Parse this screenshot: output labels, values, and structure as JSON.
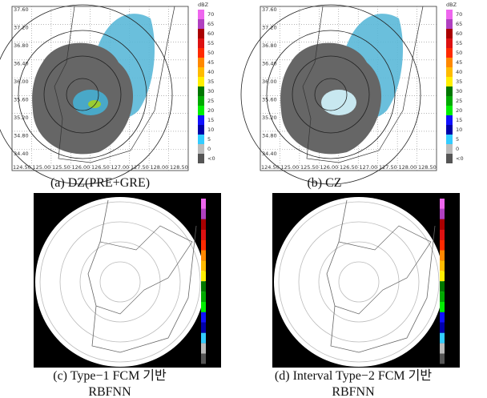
{
  "panels": [
    {
      "caption": "(a) DZ(PRE+GRE)"
    },
    {
      "caption": "(b) CZ"
    },
    {
      "caption": "(c) Type−1 FCM 기반",
      "caption_line2": "RBFNN"
    },
    {
      "caption": "(d) Interval Type−2 FCM 기반",
      "caption_line2": "RBFNN"
    }
  ],
  "colorbar": {
    "unit": "dBZ",
    "labels": [
      "70",
      "65",
      "60",
      "55",
      "50",
      "45",
      "40",
      "35",
      "30",
      "25",
      "20",
      "15",
      "10",
      "5",
      "0",
      "<0"
    ],
    "colors": [
      "#ee66ee",
      "#b040c0",
      "#aa0000",
      "#dd1111",
      "#ff2a00",
      "#ff8800",
      "#ffbb00",
      "#ffee00",
      "#007700",
      "#00aa00",
      "#00ee00",
      "#1010ff",
      "#0000aa",
      "#33ccff",
      "#bbbbbb",
      "#555555"
    ]
  },
  "map_axes": {
    "lat_labels": [
      "37.60",
      "37.20",
      "36.80",
      "36.40",
      "36.00",
      "35.60",
      "35.20",
      "34.80",
      "34.40"
    ],
    "lon_labels": [
      "124.50",
      "125.00",
      "125.50",
      "126.00",
      "126.50",
      "127.00",
      "127.50",
      "128.00",
      "128.50"
    ]
  }
}
